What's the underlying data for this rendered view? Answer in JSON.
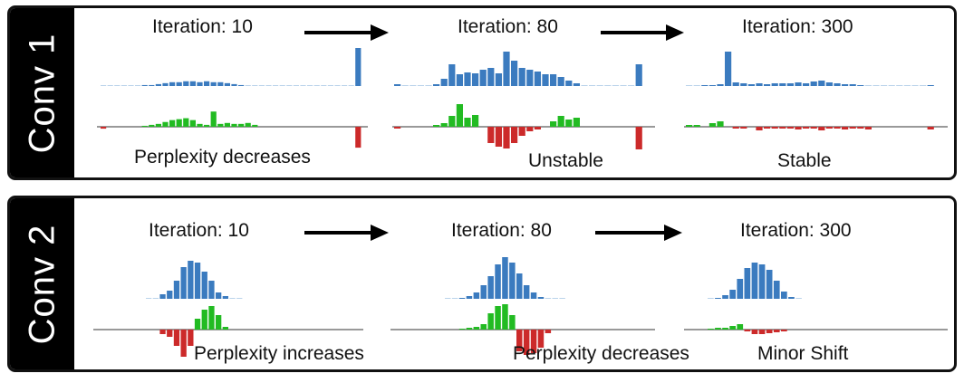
{
  "colors": {
    "positive_top": "#3b7bbf",
    "positive_green": "#22bb22",
    "negative_red": "#cc2a2a",
    "baseline": "#999999",
    "frame": "#111111"
  },
  "panels": [
    {
      "label": "Conv 1",
      "iterations": [
        "Iteration: 10",
        "Iteration: 80",
        "Iteration: 300"
      ],
      "notes": [
        "Perplexity decreases",
        "Unstable",
        "Stable"
      ],
      "charts": [
        {
          "blue": [
            0.5,
            0.5,
            0.5,
            0.5,
            0.5,
            0.6,
            1,
            1,
            2,
            3,
            4,
            4,
            5,
            5,
            4,
            5,
            4,
            4,
            3,
            2,
            1,
            0.5,
            0,
            0,
            0,
            0,
            0,
            0,
            0,
            0,
            0,
            0,
            0,
            0,
            0,
            0,
            0,
            40
          ],
          "signed": [
            -2,
            0,
            0,
            0,
            0,
            0,
            1,
            2,
            3,
            5,
            7,
            8,
            9,
            7,
            3,
            2,
            16,
            3,
            4,
            3,
            3,
            4,
            2,
            0,
            0,
            0,
            0,
            0,
            0,
            0,
            0,
            0,
            0,
            0,
            0,
            0,
            0,
            -22
          ]
        },
        {
          "blue": [
            2,
            0,
            0,
            0,
            0,
            2,
            8,
            24,
            13,
            15,
            14,
            18,
            20,
            14,
            38,
            28,
            20,
            18,
            16,
            13,
            13,
            10,
            6,
            3,
            0,
            0,
            0,
            0,
            0,
            0,
            0,
            24
          ],
          "signed": [
            -2,
            0,
            0,
            0,
            0,
            2,
            4,
            12,
            25,
            10,
            13,
            0,
            -18,
            -22,
            -24,
            -18,
            -10,
            -5,
            -3,
            0,
            6,
            12,
            8,
            10,
            0,
            0,
            0,
            0,
            0,
            0,
            0,
            -25
          ]
        },
        {
          "blue": [
            0.5,
            0.5,
            1,
            1,
            2,
            38,
            4,
            3,
            2,
            3,
            2,
            3,
            3,
            3,
            4,
            3,
            5,
            6,
            4,
            3,
            2,
            2,
            1,
            0,
            0,
            0,
            0,
            0,
            0,
            0,
            0,
            1
          ],
          "signed": [
            2,
            2,
            0,
            4,
            6,
            0,
            -2,
            -2,
            0,
            -4,
            -2,
            -2,
            -2,
            -2,
            -3,
            -2,
            -2,
            -4,
            -2,
            -2,
            -3,
            -2,
            -2,
            -3,
            0,
            0,
            0,
            0,
            0,
            0,
            0,
            -3
          ]
        }
      ]
    },
    {
      "label": "Conv 2",
      "iterations": [
        "Iteration: 10",
        "Iteration: 80",
        "Iteration: 300"
      ],
      "notes": [
        "Perplexity increases",
        "Perplexity decreases",
        "Minor Shift"
      ],
      "charts": [
        {
          "blue": [
            0.5,
            0.5,
            5,
            9,
            20,
            35,
            42,
            40,
            30,
            20,
            7,
            3,
            0.5,
            0.5
          ],
          "signed": [
            0,
            0,
            -5,
            -8,
            -18,
            -30,
            -18,
            12,
            22,
            26,
            16,
            3,
            0,
            0
          ]
        },
        {
          "blue": [
            0.5,
            0.5,
            1,
            3,
            7,
            15,
            25,
            38,
            46,
            40,
            28,
            15,
            7,
            2,
            0.5,
            0.5,
            0.5
          ],
          "signed": [
            0,
            0,
            1,
            2,
            3,
            6,
            18,
            26,
            28,
            16,
            -24,
            -28,
            -26,
            -20,
            -4,
            0,
            0
          ]
        },
        {
          "blue": [
            0.5,
            1,
            4,
            10,
            22,
            34,
            40,
            38,
            32,
            20,
            8,
            2,
            0.5
          ],
          "signed": [
            1,
            2,
            2,
            4,
            6,
            -2,
            -5,
            -5,
            -4,
            -3,
            -2,
            0,
            0
          ]
        }
      ]
    }
  ]
}
